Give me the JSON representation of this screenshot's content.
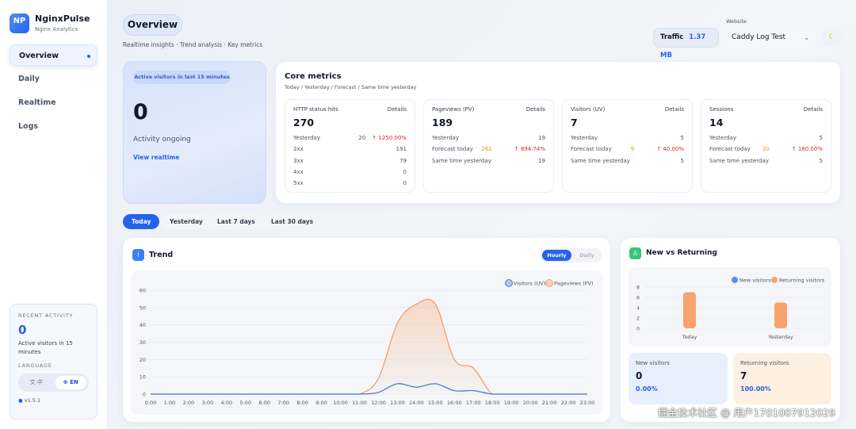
{
  "sidebar": {
    "logo": "NP",
    "brand": "NginxPulse",
    "subtitle": "Nginx Analytics",
    "items": [
      {
        "label": "Overview"
      },
      {
        "label": "Daily"
      },
      {
        "label": "Realtime"
      },
      {
        "label": "Logs"
      }
    ],
    "recent": {
      "title": "RECENT ACTIVITY",
      "count": "0",
      "desc": "Active visitors in 15 minutes",
      "lang_title": "LANGUAGE",
      "lang_zh": "文 中",
      "lang_en": "EN",
      "version": "v1.5.1"
    }
  },
  "header": {
    "title": "Overview",
    "subtitle": "Realtime insights · Trend analysis · Key metrics",
    "traffic_label": "Traffic",
    "traffic_value": "1.37 MB",
    "website_label": "Website",
    "website_value": "Caddy Log Test",
    "theme_icon": "moon-icon"
  },
  "active": {
    "badge": "Active visitors in last 15 minutes",
    "count": "0",
    "status": "Activity ongoing",
    "link": "View realtime"
  },
  "core": {
    "title": "Core metrics",
    "subtitle": "Today / Yesterday / Forecast / Same time yesterday",
    "details": "Details",
    "cards": [
      {
        "title": "HTTP status hits",
        "value": "270",
        "rows": [
          {
            "label": "Yesterday",
            "value": "20",
            "change": "↑ 1250.00%"
          },
          {
            "label": "2xx",
            "value": "191"
          },
          {
            "label": "3xx",
            "value": "79"
          },
          {
            "label": "4xx",
            "value": "0"
          },
          {
            "label": "5xx",
            "value": "0"
          }
        ]
      },
      {
        "title": "Pageviews (PV)",
        "value": "189",
        "rows": [
          {
            "label": "Yesterday",
            "value": "19"
          },
          {
            "label": "Forecast today",
            "forecast": "261",
            "change": "↑ 894.74%"
          },
          {
            "label": "Same time yesterday",
            "value": "19"
          }
        ]
      },
      {
        "title": "Visitors (UV)",
        "value": "7",
        "rows": [
          {
            "label": "Yesterday",
            "value": "5"
          },
          {
            "label": "Forecast today",
            "forecast": "9",
            "change": "↑ 40.00%"
          },
          {
            "label": "Same time yesterday",
            "value": "5"
          }
        ]
      },
      {
        "title": "Sessions",
        "value": "14",
        "rows": [
          {
            "label": "Yesterday",
            "value": "5"
          },
          {
            "label": "Forecast today",
            "forecast": "20",
            "change": "↑ 180.00%"
          },
          {
            "label": "Same time yesterday",
            "value": "5"
          }
        ]
      }
    ]
  },
  "ranges": [
    "Today",
    "Yesterday",
    "Last 7 days",
    "Last 30 days"
  ],
  "trend": {
    "title": "Trend",
    "toggle": [
      "Hourly",
      "Daily"
    ]
  },
  "nvr": {
    "title": "New vs Returning",
    "new_label": "New visitors",
    "new_value": "0",
    "new_pct": "0.00%",
    "ret_label": "Returning visitors",
    "ret_value": "7",
    "ret_pct": "100.00%"
  },
  "watermark": "掘金技术社区 @ 用户1701007912029",
  "chart_data": [
    {
      "type": "line",
      "x": [
        "0:00",
        "1:00",
        "2:00",
        "3:00",
        "4:00",
        "5:00",
        "6:00",
        "7:00",
        "8:00",
        "9:00",
        "10:00",
        "11:00",
        "12:00",
        "13:00",
        "14:00",
        "15:00",
        "16:00",
        "17:00",
        "18:00",
        "19:00",
        "20:00",
        "21:00",
        "22:00",
        "23:00"
      ],
      "yticks": [
        0,
        10,
        20,
        30,
        40,
        50,
        60
      ],
      "ylim": [
        0,
        60
      ],
      "legend": "top-right",
      "grid": true,
      "series": [
        {
          "name": "Visitors (UV)",
          "color": "#4a7fd4",
          "values": [
            0,
            0,
            0,
            0,
            0,
            0,
            0,
            0,
            0,
            0,
            0,
            0,
            1,
            6,
            4,
            6,
            2,
            2,
            0,
            0,
            0,
            0,
            0,
            0
          ]
        },
        {
          "name": "Pageviews (PV)",
          "color": "#f0a070",
          "values": [
            0,
            0,
            0,
            0,
            0,
            0,
            0,
            0,
            0,
            0,
            0,
            0,
            9,
            41,
            52,
            52,
            20,
            15,
            0,
            0,
            0,
            0,
            0,
            0
          ]
        }
      ]
    },
    {
      "type": "bar",
      "categories": [
        "Today",
        "Yesterday"
      ],
      "yticks": [
        0,
        2,
        4,
        6,
        8
      ],
      "ylim": [
        0,
        8
      ],
      "legend": "top-right",
      "grid": true,
      "series": [
        {
          "name": "New visitors",
          "color": "#5b8def",
          "values": [
            0,
            0
          ]
        },
        {
          "name": "Returning visitors",
          "color": "#f8a36e",
          "values": [
            7,
            5
          ]
        }
      ]
    }
  ]
}
